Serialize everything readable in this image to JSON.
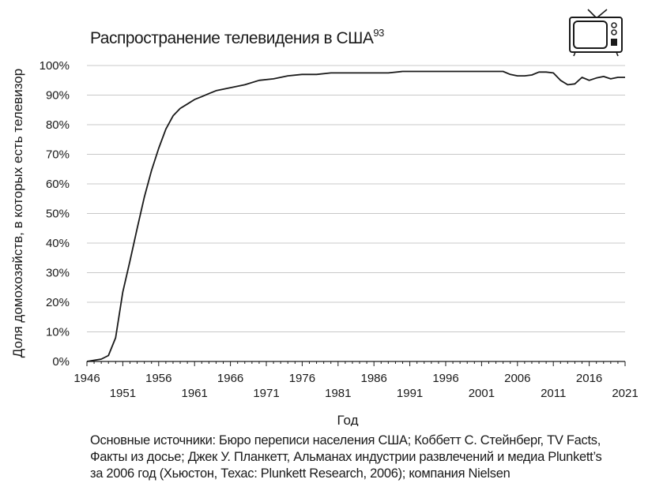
{
  "chart_data": {
    "type": "line",
    "title": "Распространение телевидения в США",
    "title_note": "93",
    "xlabel": "Год",
    "ylabel": "Доля домохозяйств, в которых есть телевизор",
    "xlim": [
      1946,
      2021
    ],
    "ylim": [
      0,
      100
    ],
    "x_ticks_top": [
      "1946",
      "1956",
      "1966",
      "1976",
      "1986",
      "1996",
      "2006",
      "2016"
    ],
    "x_ticks_bottom": [
      "1951",
      "1961",
      "1971",
      "1981",
      "1991",
      "2001",
      "2011",
      "2021"
    ],
    "y_ticks": [
      "0%",
      "10%",
      "20%",
      "30%",
      "40%",
      "50%",
      "60%",
      "70%",
      "80%",
      "90%",
      "100%"
    ],
    "y_tick_values": [
      0,
      10,
      20,
      30,
      40,
      50,
      60,
      70,
      80,
      90,
      100
    ],
    "grid": "horizontal",
    "line_color": "#1a1a1a",
    "grid_color": "#c8c8c8",
    "series": [
      {
        "x": [
          1946,
          1947,
          1948,
          1949,
          1950,
          1951,
          1952,
          1953,
          1954,
          1955,
          1956,
          1957,
          1958,
          1959,
          1960,
          1961,
          1962,
          1963,
          1964,
          1965,
          1966,
          1967,
          1968,
          1970,
          1972,
          1974,
          1976,
          1978,
          1980,
          1982,
          1984,
          1986,
          1988,
          1990,
          1992,
          1994,
          1996,
          1998,
          2000,
          2002,
          2004,
          2005,
          2006,
          2007,
          2008,
          2009,
          2010,
          2011,
          2012,
          2013,
          2014,
          2015,
          2016,
          2017,
          2018,
          2019,
          2020,
          2021
        ],
        "y": [
          0,
          0.4,
          0.8,
          2,
          8,
          23.5,
          34,
          45,
          55.5,
          64.5,
          72,
          78.5,
          83,
          85.5,
          87,
          88.5,
          89.5,
          90.5,
          91.5,
          92,
          92.5,
          93,
          93.5,
          95,
          95.5,
          96.5,
          97,
          97,
          97.5,
          97.5,
          97.5,
          97.5,
          97.5,
          98,
          98,
          98,
          98,
          98,
          98,
          98,
          98,
          97,
          96.5,
          96.5,
          96.8,
          97.8,
          97.8,
          97.5,
          95,
          93.5,
          93.8,
          96,
          95,
          95.8,
          96.3,
          95.5,
          96,
          96
        ]
      }
    ]
  },
  "sources": [
    "Основные источники: Бюро переписи населения США; Коббетт С. Стейнберг, TV Facts,",
    "Факты из досье; Джек У. Планкетт, Альманах индустрии развлечений и медиа Plunkett’s",
    "за 2006 год (Хьюстон, Техас: Plunkett Research, 2006); компания Nielsen"
  ]
}
